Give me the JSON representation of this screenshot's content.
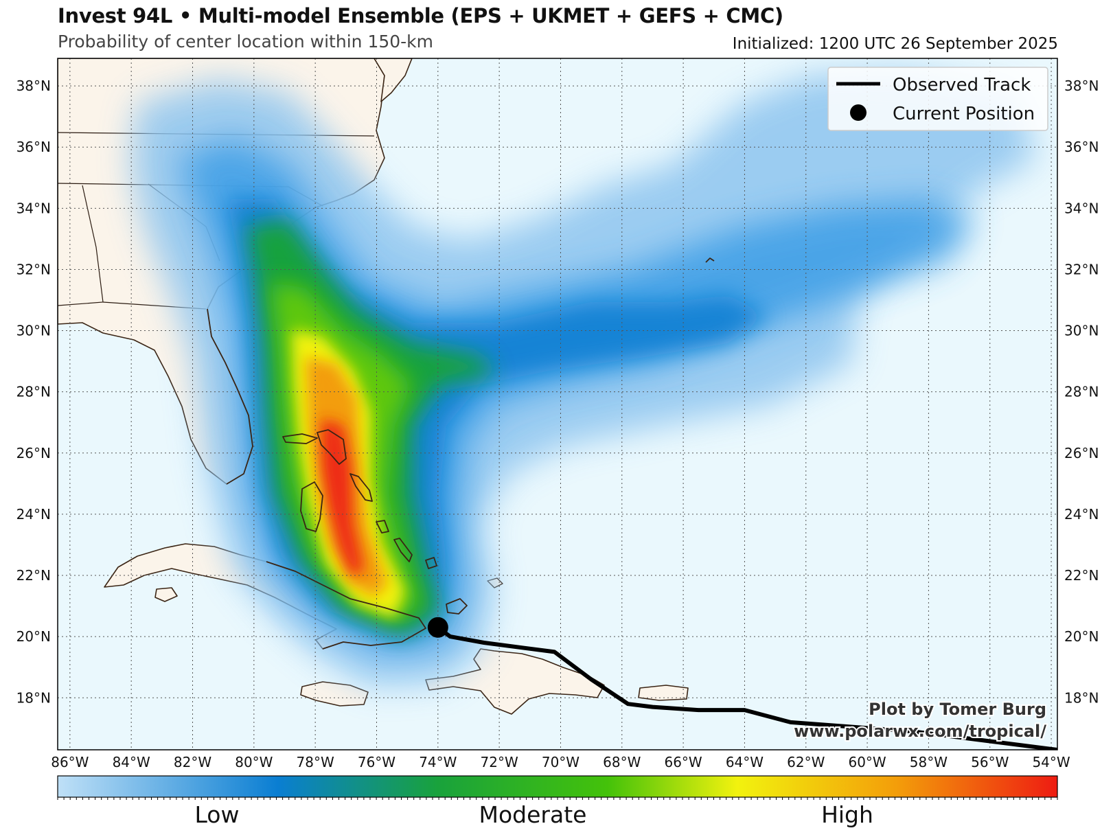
{
  "header": {
    "title": "Invest 94L • Multi-model Ensemble (EPS + UKMET + GEFS + CMC)",
    "subtitle": "Probability of center location within 150-km",
    "initialized": "Initialized: 1200 UTC 26 September 2025"
  },
  "legend": {
    "observed_track": "Observed Track",
    "current_position": "Current Position"
  },
  "credit": {
    "author": "Plot by Tomer Burg",
    "url": "www.polarwx.com/tropical/"
  },
  "colorbar": {
    "low": "Low",
    "moderate": "Moderate",
    "high": "High"
  },
  "axes": {
    "lon_labels": [
      "86°W",
      "84°W",
      "82°W",
      "80°W",
      "78°W",
      "76°W",
      "74°W",
      "72°W",
      "70°W",
      "68°W",
      "66°W",
      "64°W",
      "62°W",
      "60°W",
      "58°W",
      "56°W",
      "54°W"
    ],
    "lat_labels": [
      "18°N",
      "20°N",
      "22°N",
      "24°N",
      "26°N",
      "28°N",
      "30°N",
      "32°N",
      "34°N",
      "36°N",
      "38°N"
    ]
  },
  "map_data": {
    "lon_range": [
      -86.4,
      -53.8
    ],
    "lat_range": [
      16.3,
      38.9
    ],
    "observed_track": [
      {
        "lon": -53.8,
        "lat": 16.3
      },
      {
        "lon": -58.5,
        "lat": 16.9
      },
      {
        "lon": -62.5,
        "lat": 17.2
      },
      {
        "lon": -64.0,
        "lat": 17.6
      },
      {
        "lon": -65.5,
        "lat": 17.6
      },
      {
        "lon": -67.0,
        "lat": 17.7
      },
      {
        "lon": -67.8,
        "lat": 17.8
      },
      {
        "lon": -69.0,
        "lat": 18.6
      },
      {
        "lon": -70.2,
        "lat": 19.5
      },
      {
        "lon": -72.5,
        "lat": 19.8
      },
      {
        "lon": -73.6,
        "lat": 20.0
      },
      {
        "lon": -74.0,
        "lat": 20.3
      }
    ],
    "current_position": {
      "lon": -74.0,
      "lat": 20.3
    },
    "colors": {
      "ocean": "#eaf8fd",
      "land": "#fbf4ea",
      "coast": "#3a2414",
      "track": "#000000",
      "colorbar": [
        "#bfe0f7",
        "#0a7ed2",
        "#19a23c",
        "#44c20a",
        "#f2f20e",
        "#f39d0a",
        "#ee1c12"
      ]
    }
  }
}
